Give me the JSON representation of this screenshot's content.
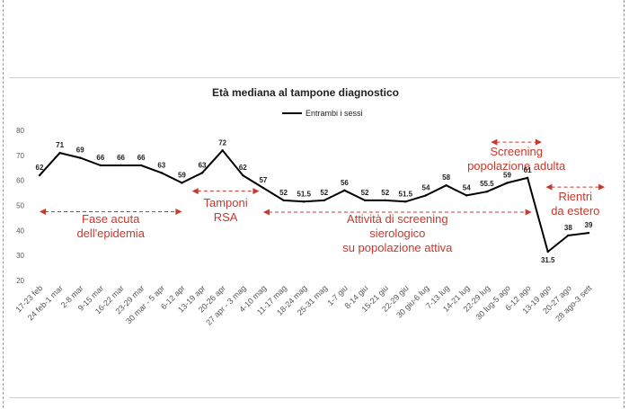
{
  "chart_data": {
    "type": "line",
    "title": "Età mediana al tampone diagnostico",
    "xlabel": "",
    "ylabel": "",
    "ylim": [
      20,
      80
    ],
    "yticks": [
      20,
      30,
      40,
      50,
      60,
      70,
      80
    ],
    "grid": false,
    "legend_placement": "top-center",
    "categories": [
      "17-23 feb",
      "24 feb-1 mar",
      "2-8 mar",
      "9-15 mar",
      "16-22 mar",
      "23-29 mar",
      "30 mar - 5 apr",
      "6-12 apr",
      "13-19 apr",
      "20-26 apr",
      "27 apr - 3 mag",
      "4-10 mag",
      "11-17 mag",
      "18-24 mag",
      "25-31 mag",
      "1-7 giu",
      "8-14 giu",
      "15-21 giu",
      "22-29 giu",
      "30 giu-6 lug",
      "7-13 lug",
      "14-21 lug",
      "22-29 lug",
      "30 lug-5 ago",
      "6-12 ago",
      "13-19 ago",
      "20-27 ago",
      "28 ago-3 sett"
    ],
    "series": [
      {
        "name": "Entrambi i sessi",
        "color": "#000000",
        "values": [
          62,
          71,
          69,
          66,
          66,
          66,
          63,
          59,
          63,
          72,
          62,
          57,
          52,
          51.5,
          52,
          56,
          52,
          52,
          51.5,
          54,
          58,
          54,
          55.5,
          59,
          61,
          31.5,
          38,
          39
        ],
        "labels": [
          "62",
          "71",
          "69",
          "66",
          "66",
          "66",
          "63",
          "59",
          "63",
          "72",
          "62",
          "57",
          "52",
          "51.5",
          "52",
          "56",
          "52",
          "52",
          "51.5",
          "54",
          "58",
          "54",
          "55.5",
          "59",
          "61",
          "31.5",
          "38",
          "39"
        ]
      }
    ],
    "annotation_color": "#c8382b",
    "annotations": [
      {
        "lines": [
          "Fase acuta",
          "dell'epidemia"
        ],
        "from": 0,
        "to": 7,
        "arrow_y": 47.5,
        "text_y": 43
      },
      {
        "lines": [
          "Tamponi",
          "RSA"
        ],
        "from": 7.5,
        "to": 10.8,
        "arrow_y": 55.7,
        "text_y": 49.5
      },
      {
        "lines": [
          "Attività di screening",
          "sierologico",
          "su popolazione attiva"
        ],
        "from": 11,
        "to": 24.2,
        "arrow_y": 47.3,
        "text_y": 43
      },
      {
        "lines": [
          "Screening",
          "popolazione adulta"
        ],
        "from": 22.2,
        "to": 24.7,
        "arrow_y": 75.3,
        "text_y": 70
      },
      {
        "lines": [
          "Rientri",
          "da estero"
        ],
        "from": 24.9,
        "to": 27.8,
        "arrow_y": 57.3,
        "text_y": 52
      }
    ]
  }
}
